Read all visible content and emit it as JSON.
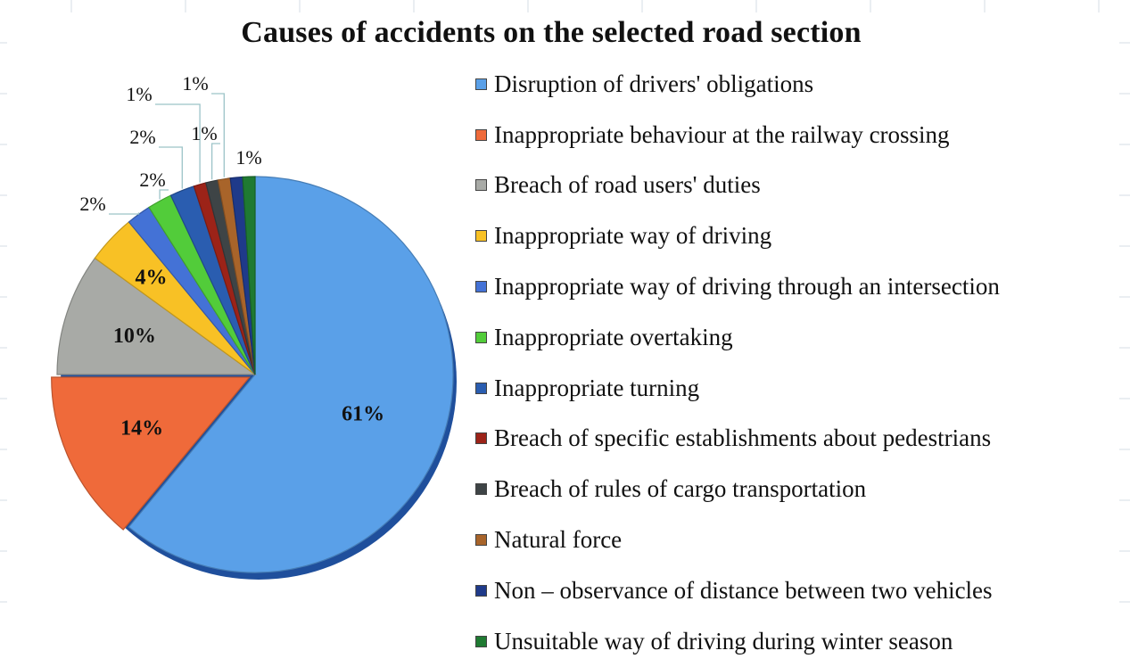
{
  "chart_data": {
    "type": "pie",
    "title": "Causes of accidents on the selected road section",
    "legend_position": "right",
    "slices": [
      {
        "label": "Disruption of drivers' obligations",
        "value": 61,
        "display": "61%",
        "color": "#5aa0e8"
      },
      {
        "label": "Inappropriate behaviour at the railway crossing",
        "value": 14,
        "display": "14%",
        "color": "#ef6a3a"
      },
      {
        "label": "Breach of road users' duties",
        "value": 10,
        "display": "10%",
        "color": "#a8aaa6"
      },
      {
        "label": "Inappropriate way of driving",
        "value": 4,
        "display": "4%",
        "color": "#f8c125"
      },
      {
        "label": "Inappropriate way of driving through an intersection",
        "value": 2,
        "display": "2%",
        "color": "#4472d6"
      },
      {
        "label": "Inappropriate overtaking",
        "value": 2,
        "display": "2%",
        "color": "#52cc3a"
      },
      {
        "label": "Inappropriate turning",
        "value": 2,
        "display": "2%",
        "color": "#2a5db0"
      },
      {
        "label": "Breach of specific establishments about pedestrians",
        "value": 1,
        "display": "1%",
        "color": "#9c2318"
      },
      {
        "label": "Breach of rules of cargo transportation",
        "value": 1,
        "display": "1%",
        "color": "#3e4446"
      },
      {
        "label": "Natural force",
        "value": 1,
        "display": "1%",
        "color": "#a8642a"
      },
      {
        "label": "Non – observance of distance between two vehicles",
        "value": 1,
        "display": "1%",
        "color": "#1f3a8a"
      },
      {
        "label": "Unsuitable way of driving during winter season",
        "value": 1,
        "display": "1%",
        "color": "#1f7a32"
      }
    ]
  }
}
